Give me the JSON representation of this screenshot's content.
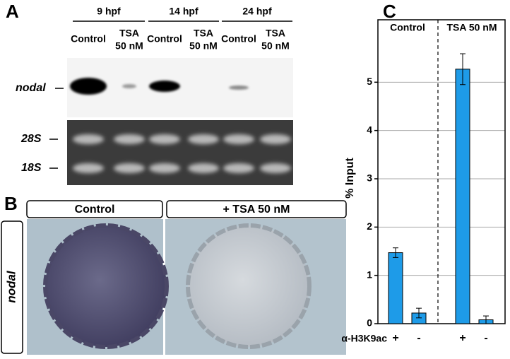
{
  "panels": {
    "a": {
      "letter": "A",
      "groups": [
        "9 hpf",
        "14 hpf",
        "24 hpf"
      ],
      "lanes": [
        {
          "lines": [
            "Control"
          ]
        },
        {
          "lines": [
            "TSA",
            "50 nM"
          ]
        },
        {
          "lines": [
            "Control"
          ]
        },
        {
          "lines": [
            "TSA",
            "50 nM"
          ]
        },
        {
          "lines": [
            "Control"
          ]
        },
        {
          "lines": [
            "TSA",
            "50 nM"
          ]
        }
      ],
      "rows": [
        "nodal",
        "28S",
        "18S"
      ]
    },
    "b": {
      "letter": "B",
      "columns": [
        "Control",
        "+ TSA 50 nM"
      ],
      "row_label": "nodal"
    }
  },
  "chart_data": {
    "type": "bar",
    "letter": "C",
    "y_label": "% Input",
    "groups": [
      "Control",
      "TSA 50 nM"
    ],
    "row_label": "α-H3K9ac",
    "categories": [
      "+",
      "-",
      "+",
      "-"
    ],
    "values": [
      1.47,
      0.22,
      5.27,
      0.08
    ],
    "errors": [
      0.1,
      0.1,
      0.32,
      0.08
    ],
    "color": "#1e9be8",
    "ylim": [
      0,
      6
    ],
    "yticks": [
      0,
      1,
      2,
      3,
      4,
      5
    ],
    "grid": true
  }
}
